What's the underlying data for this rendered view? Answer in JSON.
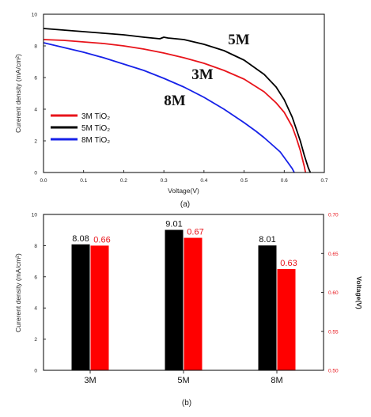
{
  "chart_data": [
    {
      "type": "line",
      "caption": "(a)",
      "xlabel": "Voltage(V)",
      "ylabel": "Curerent density (mA/cm²)",
      "xlim": [
        0,
        0.7
      ],
      "ylim": [
        0,
        10
      ],
      "xticks": [
        "0.0",
        "0.1",
        "0.2",
        "0.3",
        "0.4",
        "0.5",
        "0.6",
        "0.7"
      ],
      "yticks": [
        "0",
        "2",
        "4",
        "6",
        "8",
        "10"
      ],
      "annotations": [
        "5M",
        "3M",
        "8M"
      ],
      "legend_position": "lower-left",
      "series": [
        {
          "name": "3M TiO₂",
          "color": "#e8141b",
          "x": [
            0,
            0.05,
            0.1,
            0.15,
            0.2,
            0.25,
            0.3,
            0.35,
            0.4,
            0.45,
            0.5,
            0.55,
            0.58,
            0.6,
            0.62,
            0.63,
            0.64,
            0.645,
            0.65,
            0.653
          ],
          "y": [
            8.4,
            8.35,
            8.25,
            8.15,
            8.0,
            7.8,
            7.55,
            7.25,
            6.9,
            6.45,
            5.9,
            5.1,
            4.4,
            3.8,
            2.9,
            2.2,
            1.4,
            0.9,
            0.4,
            0.0
          ]
        },
        {
          "name": "5M TiO₂",
          "color": "#000000",
          "x": [
            0,
            0.05,
            0.1,
            0.15,
            0.2,
            0.25,
            0.29,
            0.3,
            0.31,
            0.35,
            0.4,
            0.45,
            0.5,
            0.55,
            0.58,
            0.6,
            0.62,
            0.64,
            0.65,
            0.66,
            0.665
          ],
          "y": [
            9.1,
            9.0,
            8.9,
            8.8,
            8.7,
            8.55,
            8.45,
            8.55,
            8.5,
            8.4,
            8.1,
            7.7,
            7.1,
            6.2,
            5.4,
            4.6,
            3.5,
            2.0,
            1.1,
            0.3,
            0.0
          ]
        },
        {
          "name": "8M TiO₂",
          "color": "#1621e8",
          "x": [
            0,
            0.05,
            0.1,
            0.15,
            0.2,
            0.25,
            0.3,
            0.35,
            0.4,
            0.45,
            0.5,
            0.53,
            0.55,
            0.57,
            0.59,
            0.6,
            0.61,
            0.62,
            0.625
          ],
          "y": [
            8.2,
            7.9,
            7.6,
            7.25,
            6.85,
            6.45,
            5.95,
            5.4,
            4.75,
            4.0,
            3.15,
            2.6,
            2.2,
            1.75,
            1.3,
            0.95,
            0.6,
            0.25,
            0.0
          ]
        }
      ]
    },
    {
      "type": "bar",
      "caption": "(b)",
      "categories": [
        "3M",
        "5M",
        "8M"
      ],
      "ylabel": "Curerent density (mA/cm²)",
      "y2label": "Voltage(V)",
      "ylim": [
        0,
        10
      ],
      "y2lim": [
        0.5,
        0.7
      ],
      "yticks": [
        "0",
        "2",
        "4",
        "6",
        "8",
        "10"
      ],
      "y2ticks": [
        "0.50",
        "0.55",
        "0.60",
        "0.65",
        "0.70"
      ],
      "series": [
        {
          "name": "Current density",
          "axis": "left",
          "color": "#000000",
          "values": [
            8.08,
            9.01,
            8.01
          ],
          "labels": [
            "8.08",
            "9.01",
            "8.01"
          ]
        },
        {
          "name": "Voltage",
          "axis": "right",
          "color": "#ff0000",
          "values": [
            0.66,
            0.67,
            0.63
          ],
          "labels": [
            "0.66",
            "0.67",
            "0.63"
          ]
        }
      ]
    }
  ]
}
